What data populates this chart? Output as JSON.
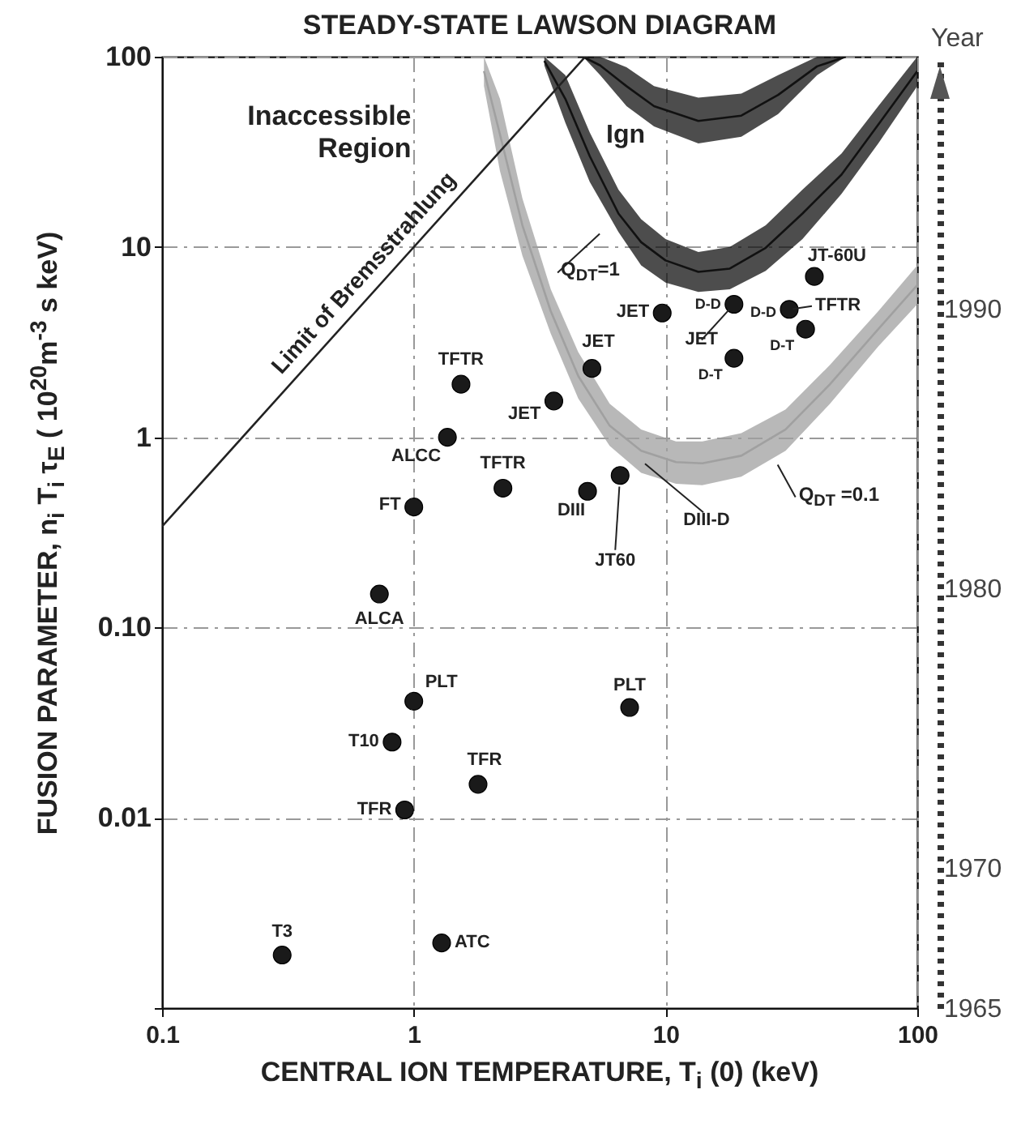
{
  "chart_data": {
    "type": "scatter",
    "title": "STEADY-STATE LAWSON DIAGRAM",
    "xlabel": "CENTRAL ION TEMPERATURE, T$_{i}$ (0) (keV)",
    "ylabel": "FUSION PARAMETER, n$_{i}$ T$_{i}$ τ$_{E}$ ( 10$^{20}$m$^{-3}$ s keV)",
    "y2label": "Year",
    "log": "xy",
    "grid": true,
    "xlim": [
      0.1,
      100
    ],
    "xticks": [
      0.1,
      1,
      10,
      100
    ],
    "ylim": [
      0.001,
      100
    ],
    "yticks": [
      100,
      10,
      1,
      {
        "value": 0.1,
        "label": "0.10"
      },
      0.01,
      {
        "value": 0.001,
        "label": null
      }
    ],
    "y2lim": [
      1965,
      1999
    ],
    "y2ticks": [
      1965,
      1970,
      1980,
      1990
    ],
    "series": [
      {
        "type": "line",
        "color": "#a0a0a0",
        "x": [
          1.9,
          2.2,
          2.7,
          3.5,
          4.5,
          6,
          8,
          11,
          14,
          20,
          30,
          45,
          70,
          100
        ],
        "values": [
          84,
          39,
          13,
          4.6,
          2.1,
          1.15,
          0.85,
          0.74,
          0.73,
          0.8,
          1.1,
          1.9,
          3.7,
          6.3
        ],
        "lower": [
          70,
          25,
          9,
          3.5,
          1.6,
          0.9,
          0.65,
          0.57,
          0.56,
          0.62,
          0.85,
          1.5,
          3,
          5
        ],
        "upper": [
          100,
          60,
          18,
          6,
          2.8,
          1.5,
          1.1,
          0.95,
          0.95,
          1.05,
          1.4,
          2.4,
          4.6,
          8
        ]
      },
      {
        "type": "line",
        "color": "#111111",
        "x": [
          3.3,
          4,
          5,
          6.5,
          8,
          10,
          13.5,
          18,
          25,
          35,
          50,
          70,
          100
        ],
        "values": [
          95,
          60,
          30,
          15,
          10.6,
          8.5,
          7.4,
          7.7,
          9.9,
          15,
          24,
          44,
          84
        ],
        "lower": [
          90,
          45,
          22,
          12,
          8,
          6.5,
          5.8,
          6,
          7.5,
          11,
          19,
          35,
          70
        ],
        "upper": [
          100,
          80,
          40,
          20,
          14,
          11,
          9.4,
          10,
          13,
          20,
          31,
          55,
          100
        ]
      },
      {
        "type": "line",
        "color": "#111111",
        "x": [
          4.7,
          5.5,
          7,
          9,
          13.5,
          20,
          28,
          40,
          52
        ],
        "values": [
          100,
          90,
          70,
          55,
          46,
          49,
          63,
          89,
          100
        ],
        "lower": [
          100,
          80,
          55,
          43,
          35,
          38,
          50,
          80,
          100
        ],
        "upper": [
          100,
          100,
          88,
          70,
          61,
          64,
          80,
          100,
          100
        ]
      },
      {
        "type": "line",
        "color": "#222222",
        "x": [
          0.1,
          4.8
        ],
        "values": [
          0.34,
          100
        ]
      },
      {
        "type": "scatter",
        "color": "#1a1a1a",
        "marker": "circle",
        "x": [
          0.3,
          1.29,
          0.92,
          1.8,
          0.82,
          1.0,
          7.2,
          0.73,
          1.0,
          2.26,
          1.36,
          1.54,
          3.6,
          5.1,
          4.9,
          6.6,
          9.7,
          18.7,
          18.7,
          31,
          36,
          39
        ],
        "values": [
          0.0019,
          0.0022,
          0.011,
          0.015,
          0.025,
          0.041,
          0.038,
          0.15,
          0.43,
          0.54,
          1.0,
          1.9,
          1.55,
          2.3,
          0.52,
          0.63,
          4.5,
          5.0,
          2.6,
          4.7,
          3.7,
          7.0
        ]
      }
    ],
    "annotations": [
      {
        "text": "TFTR",
        "x": 1.54,
        "y": 1.9
      },
      {
        "text": "JET",
        "x": 3.6,
        "y": 1.55
      },
      {
        "text": "JET",
        "x": 5.1,
        "y": 2.3
      },
      {
        "text": "ALCC",
        "x": 1.36,
        "y": 1.0
      },
      {
        "text": "TFTR",
        "x": 2.26,
        "y": 0.54
      },
      {
        "text": "FT",
        "x": 1.0,
        "y": 0.43
      },
      {
        "text": "DIII",
        "x": 4.9,
        "y": 0.52
      },
      {
        "text": "JT60",
        "x": 6.6,
        "y": 0.63
      },
      "DIII-D",
      {
        "text": "JET",
        "x": 9.7,
        "y": 4.5
      },
      {
        "text": "D-D",
        "x": 18.7,
        "y": 5.0
      },
      {
        "text": "D-T",
        "x": 18.7,
        "y": 2.6
      },
      {
        "text": "JET",
        "x": 18.7,
        "y": 5.0
      },
      {
        "text": "JT-60U",
        "x": 39,
        "y": 7.0
      },
      {
        "text": "D-D",
        "x": 31,
        "y": 4.7
      },
      {
        "text": "TFTR",
        "x": 31,
        "y": 4.7
      },
      {
        "text": "D-T",
        "x": 36,
        "y": 3.7
      },
      {
        "text": "ALCA",
        "x": 0.73,
        "y": 0.15
      },
      {
        "text": "PLT",
        "x": 1.0,
        "y": 0.041
      },
      {
        "text": "PLT",
        "x": 7.2,
        "y": 0.038
      },
      {
        "text": "T10",
        "x": 0.82,
        "y": 0.025
      },
      {
        "text": "TFR",
        "x": 1.8,
        "y": 0.015
      },
      {
        "text": "TFR",
        "x": 0.92,
        "y": 0.011
      },
      {
        "text": "T3",
        "x": 0.3,
        "y": 0.0019
      },
      {
        "text": "ATC",
        "x": 1.29,
        "y": 0.0022
      },
      "Q$_{DT}$ =0.1",
      "Q$_{DT}$=1",
      "Ign",
      "Limit of Bremsstrahlung",
      "Inaccessible Region"
    ]
  }
}
